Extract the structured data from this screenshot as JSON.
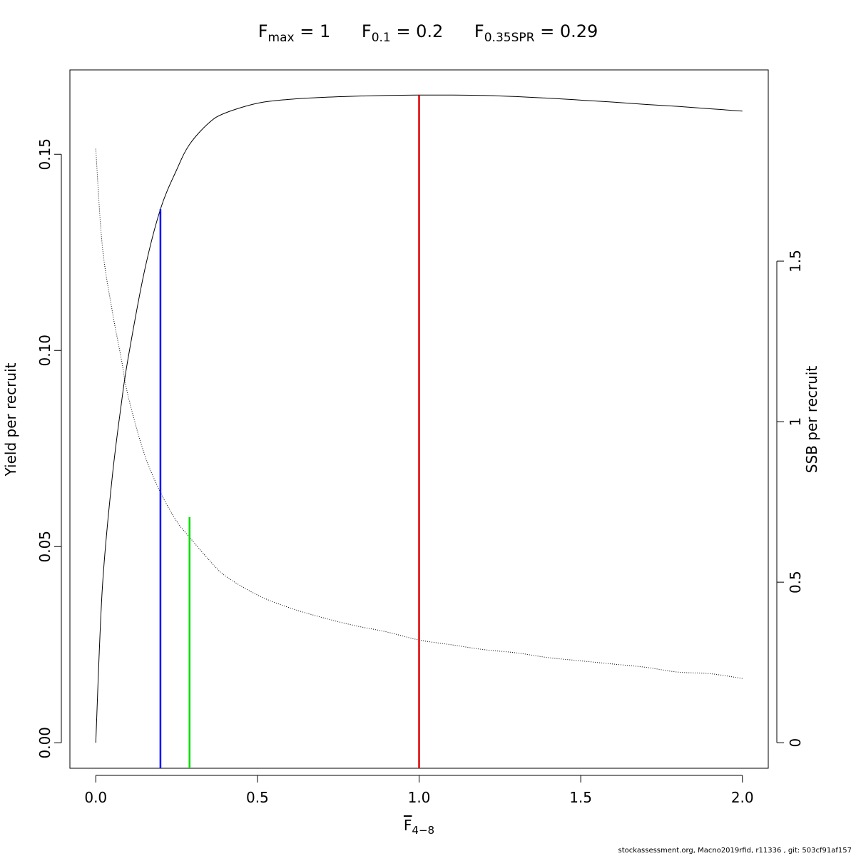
{
  "title": {
    "fmax_label": "F",
    "fmax_sub": "max",
    "fmax_value": " = 1",
    "f01_label": "F",
    "f01_sub": "0.1",
    "f01_value": " = 0.2",
    "fspr_label": "F",
    "fspr_sub": "0.35SPR",
    "fspr_value": " = 0.29"
  },
  "footer": "stockassessment.org, Macno2019rfid, r11336 , git: 503cf91af157",
  "chart_data": {
    "type": "line",
    "xlabel": {
      "symbol": "F",
      "sub": "4−8"
    },
    "ylabel": "Yield per recruit",
    "y2label": "SSB per recruit",
    "xlim": [
      -0.08,
      2.08
    ],
    "ylim": [
      -0.0065,
      0.1715
    ],
    "y2lim": [
      -0.0796,
      2.0956
    ],
    "xticks": [
      0.0,
      0.5,
      1.0,
      1.5,
      2.0
    ],
    "xtick_labels": [
      "0.0",
      "0.5",
      "1.0",
      "1.5",
      "2.0"
    ],
    "yticks": [
      0.0,
      0.05,
      0.1,
      0.15
    ],
    "ytick_labels": [
      "0.00",
      "0.05",
      "0.10",
      "0.15"
    ],
    "y2ticks": [
      0,
      0.5,
      1,
      1.5
    ],
    "y2tick_labels": [
      "0",
      "0.5",
      "1",
      "1.5"
    ],
    "grid": false,
    "series": [
      {
        "axis": "left",
        "style": "solid",
        "color": "#000000",
        "x": [
          0.0,
          0.02,
          0.05,
          0.08,
          0.1,
          0.15,
          0.2,
          0.25,
          0.29,
          0.35,
          0.4,
          0.5,
          0.6,
          0.7,
          0.8,
          0.9,
          1.0,
          1.1,
          1.2,
          1.3,
          1.4,
          1.5,
          1.6,
          1.7,
          1.8,
          1.9,
          2.0
        ],
        "y": [
          0.0,
          0.039,
          0.067,
          0.087,
          0.098,
          0.12,
          0.136,
          0.146,
          0.1525,
          0.158,
          0.1605,
          0.163,
          0.164,
          0.1645,
          0.1648,
          0.165,
          0.1651,
          0.1651,
          0.165,
          0.1647,
          0.1643,
          0.1638,
          0.1633,
          0.1627,
          0.1622,
          0.1616,
          0.161
        ]
      },
      {
        "axis": "right",
        "style": "dotted",
        "color": "#000000",
        "x": [
          0.0,
          0.02,
          0.05,
          0.08,
          0.1,
          0.15,
          0.2,
          0.25,
          0.29,
          0.35,
          0.4,
          0.5,
          0.6,
          0.7,
          0.8,
          0.9,
          1.0,
          1.1,
          1.2,
          1.3,
          1.4,
          1.5,
          1.6,
          1.7,
          1.8,
          1.9,
          2.0
        ],
        "y": [
          1.85,
          1.55,
          1.35,
          1.19,
          1.08,
          0.9,
          0.78,
          0.69,
          0.64,
          0.57,
          0.52,
          0.46,
          0.42,
          0.39,
          0.365,
          0.345,
          0.32,
          0.305,
          0.29,
          0.28,
          0.265,
          0.255,
          0.245,
          0.235,
          0.22,
          0.215,
          0.2
        ]
      }
    ],
    "reference_lines": [
      {
        "name": "F0.1",
        "x": 0.2,
        "y_top": 0.136,
        "color": "#0000ff"
      },
      {
        "name": "F0.35SPR",
        "x": 0.29,
        "y_top": 0.0575,
        "color": "#00dd00"
      },
      {
        "name": "Fmax",
        "x": 1.0,
        "y_top": 0.1651,
        "color": "#dd0000"
      }
    ]
  }
}
